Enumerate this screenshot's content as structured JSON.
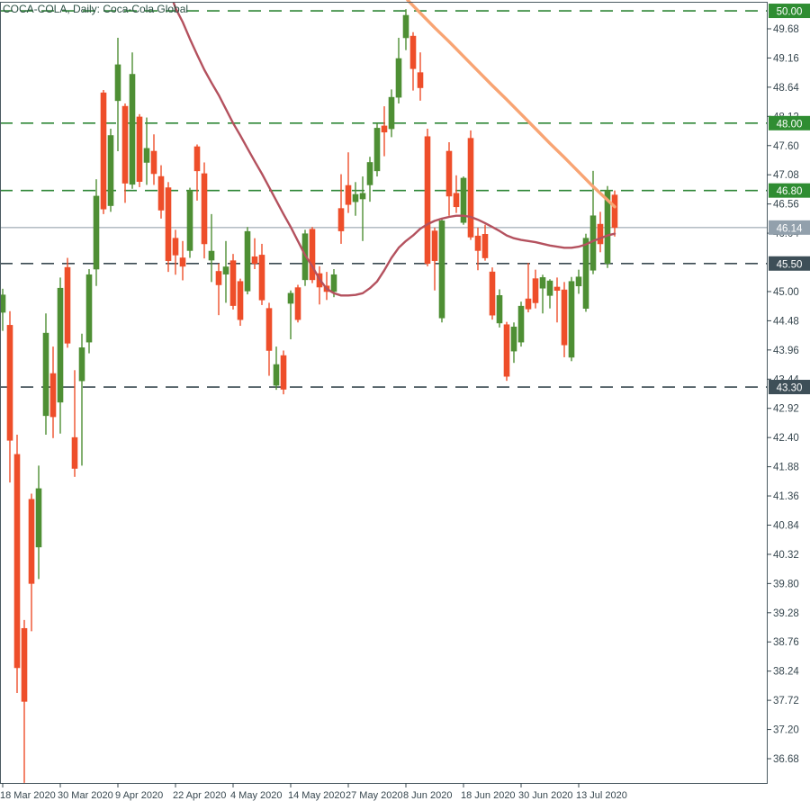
{
  "window": {
    "title": "COCA-COLA, Daily: Coca-Cola Global"
  },
  "chart_data": {
    "type": "candlestick",
    "title": "COCA-COLA, Daily: Coca-Cola Global",
    "symbol": "COCA-COLA",
    "period": "Daily",
    "description": "Coca-Cola Global",
    "price_axis": {
      "visible_tick_labels": [
        "49.68",
        "49.16",
        "48.64",
        "48.12",
        "47.60",
        "47.08",
        "46.56",
        "46.04",
        "45.00",
        "44.48",
        "43.96",
        "43.44",
        "42.92",
        "42.40",
        "41.88",
        "41.36",
        "40.84",
        "40.32",
        "39.80",
        "39.28",
        "38.76",
        "38.24",
        "37.72",
        "37.20",
        "36.68"
      ],
      "tick_step": 0.52,
      "current_price": "46.14"
    },
    "time_axis": {
      "labels": [
        "18 Mar 2020",
        "30 Mar 2020",
        "9 Apr 2020",
        "22 Apr 2020",
        "4 May 2020",
        "14 May 2020",
        "27 May 2020",
        "8 Jun 2020",
        "18 Jun 2020",
        "30 Jun 2020",
        "13 Jul 2020"
      ],
      "candle_indices": [
        0,
        8,
        16,
        24,
        32,
        40,
        48,
        56,
        64,
        72,
        80
      ]
    },
    "levels": [
      {
        "price": 50.0,
        "label": "50.00",
        "line_style": "dashed",
        "line_color": "#2e8636",
        "badge_color": "#2f8d32"
      },
      {
        "price": 48.0,
        "label": "48.00",
        "line_style": "dashed",
        "line_color": "#2e8636",
        "badge_color": "#2f8d32"
      },
      {
        "price": 46.8,
        "label": "46.80",
        "line_style": "dashed",
        "line_color": "#2e8636",
        "badge_color": "#2f8d32"
      },
      {
        "price": 46.14,
        "label": "46.14",
        "line_style": "solid",
        "line_color": "#8b99a5",
        "badge_color": "#92a0ac"
      },
      {
        "price": 45.5,
        "label": "45.50",
        "line_style": "dashed",
        "line_color": "#3a4a52",
        "badge_color": "#3e4f58"
      },
      {
        "price": 43.3,
        "label": "43.30",
        "line_style": "dashed",
        "line_color": "#3a4a52",
        "badge_color": "#3e4f58"
      }
    ],
    "moving_averages": [
      {
        "name": "ma-fast-red",
        "color": "#b4515e",
        "width": 2.4,
        "points": [
          [
            23.75,
            50.14
          ],
          [
            24,
            50.05
          ],
          [
            25,
            49.8
          ],
          [
            26,
            49.5
          ],
          [
            27,
            49.22
          ],
          [
            28,
            48.95
          ],
          [
            29,
            48.72
          ],
          [
            30,
            48.5
          ],
          [
            31,
            48.25
          ],
          [
            32,
            48.0
          ],
          [
            33,
            47.78
          ],
          [
            34,
            47.55
          ],
          [
            35,
            47.32
          ],
          [
            36,
            47.1
          ],
          [
            37,
            46.86
          ],
          [
            38,
            46.62
          ],
          [
            39,
            46.38
          ],
          [
            40,
            46.15
          ],
          [
            41,
            45.9
          ],
          [
            42,
            45.65
          ],
          [
            43,
            45.45
          ],
          [
            44,
            45.22
          ],
          [
            45,
            45.05
          ],
          [
            46,
            44.97
          ],
          [
            47,
            44.93
          ],
          [
            48,
            44.93
          ],
          [
            49,
            44.94
          ],
          [
            50,
            44.97
          ],
          [
            51,
            45.06
          ],
          [
            52,
            45.18
          ],
          [
            53,
            45.38
          ],
          [
            54,
            45.6
          ],
          [
            55,
            45.78
          ],
          [
            56,
            45.9
          ],
          [
            57,
            46.0
          ],
          [
            58,
            46.12
          ],
          [
            59,
            46.2
          ],
          [
            60,
            46.26
          ],
          [
            61,
            46.3
          ],
          [
            62,
            46.33
          ],
          [
            63,
            46.35
          ],
          [
            64,
            46.35
          ],
          [
            65,
            46.33
          ],
          [
            66,
            46.28
          ],
          [
            67,
            46.22
          ],
          [
            68,
            46.15
          ],
          [
            69,
            46.08
          ],
          [
            70,
            46.0
          ],
          [
            71,
            45.95
          ],
          [
            72,
            45.92
          ],
          [
            73,
            45.9
          ],
          [
            74,
            45.88
          ],
          [
            75,
            45.85
          ],
          [
            76,
            45.82
          ],
          [
            77,
            45.8
          ],
          [
            78,
            45.78
          ],
          [
            79,
            45.78
          ],
          [
            80,
            45.8
          ],
          [
            81,
            45.84
          ],
          [
            82,
            45.9
          ],
          [
            83,
            45.95
          ],
          [
            84,
            46.0
          ],
          [
            85,
            46.03
          ]
        ]
      },
      {
        "name": "ma-slow-orange",
        "color": "#f8a473",
        "width": 3.4,
        "points": [
          [
            56.25,
            50.19
          ],
          [
            58,
            49.96
          ],
          [
            60,
            49.7
          ],
          [
            62,
            49.45
          ],
          [
            64,
            49.19
          ],
          [
            66,
            48.93
          ],
          [
            68,
            48.67
          ],
          [
            70,
            48.42
          ],
          [
            72,
            48.16
          ],
          [
            74,
            47.9
          ],
          [
            76,
            47.64
          ],
          [
            78,
            47.39
          ],
          [
            80,
            47.13
          ],
          [
            82,
            46.87
          ],
          [
            84,
            46.63
          ],
          [
            85,
            46.51
          ]
        ]
      }
    ],
    "style": {
      "up_color": "#4e8f34",
      "down_color": "#ee4e2a",
      "axis_text_color": "#37474f",
      "border_color": "#4b5a61",
      "badge_text_color": "#ffffff",
      "background": "#ffffff"
    },
    "candles": [
      {
        "d": "18 Mar 2020",
        "o": 44.63,
        "h": 45.05,
        "l": 44.3,
        "c": 44.94
      },
      {
        "d": "19 Mar 2020",
        "o": 44.4,
        "h": 44.65,
        "l": 41.6,
        "c": 42.35
      },
      {
        "d": "20 Mar 2020",
        "o": 42.1,
        "h": 42.45,
        "l": 37.85,
        "c": 38.3
      },
      {
        "d": "23 Mar 2020",
        "o": 39.0,
        "h": 39.15,
        "l": 36.25,
        "c": 37.7
      },
      {
        "d": "24 Mar 2020",
        "o": 41.3,
        "h": 41.4,
        "l": 38.95,
        "c": 39.8
      },
      {
        "d": "25 Mar 2020",
        "o": 40.45,
        "h": 41.9,
        "l": 39.88,
        "c": 41.49
      },
      {
        "d": "26 Mar 2020",
        "o": 42.79,
        "h": 44.61,
        "l": 42.45,
        "c": 44.26
      },
      {
        "d": "27 Mar 2020",
        "o": 43.54,
        "h": 44.02,
        "l": 42.39,
        "c": 42.77
      },
      {
        "d": "30 Mar 2020",
        "o": 43.03,
        "h": 45.25,
        "l": 42.47,
        "c": 45.06
      },
      {
        "d": "31 Mar 2020",
        "o": 45.43,
        "h": 45.6,
        "l": 44.0,
        "c": 44.08
      },
      {
        "d": "1 Apr 2020",
        "o": 42.4,
        "h": 43.6,
        "l": 41.7,
        "c": 41.85
      },
      {
        "d": "2 Apr 2020",
        "o": 43.41,
        "h": 44.25,
        "l": 41.9,
        "c": 44.0
      },
      {
        "d": "3 Apr 2020",
        "o": 44.1,
        "h": 45.4,
        "l": 43.9,
        "c": 45.3
      },
      {
        "d": "6 Apr 2020",
        "o": 45.4,
        "h": 47.0,
        "l": 45.1,
        "c": 46.7
      },
      {
        "d": "7 Apr 2020",
        "o": 48.54,
        "h": 48.59,
        "l": 46.38,
        "c": 46.47
      },
      {
        "d": "8 Apr 2020",
        "o": 46.53,
        "h": 47.9,
        "l": 46.42,
        "c": 47.78
      },
      {
        "d": "9 Apr 2020",
        "o": 48.4,
        "h": 49.52,
        "l": 47.5,
        "c": 49.04
      },
      {
        "d": "13 Apr 2020",
        "o": 48.3,
        "h": 48.35,
        "l": 46.58,
        "c": 46.93
      },
      {
        "d": "14 Apr 2020",
        "o": 46.91,
        "h": 49.26,
        "l": 46.83,
        "c": 48.87
      },
      {
        "d": "15 Apr 2020",
        "o": 48.11,
        "h": 48.16,
        "l": 46.86,
        "c": 46.96
      },
      {
        "d": "16 Apr 2020",
        "o": 47.3,
        "h": 48.1,
        "l": 46.9,
        "c": 47.55
      },
      {
        "d": "17 Apr 2020",
        "o": 47.5,
        "h": 47.8,
        "l": 46.9,
        "c": 47.1
      },
      {
        "d": "20 Apr 2020",
        "o": 47.05,
        "h": 47.25,
        "l": 46.3,
        "c": 46.45
      },
      {
        "d": "21 Apr 2020",
        "o": 46.85,
        "h": 46.95,
        "l": 45.35,
        "c": 45.55
      },
      {
        "d": "22 Apr 2020",
        "o": 45.95,
        "h": 46.1,
        "l": 45.3,
        "c": 45.65
      },
      {
        "d": "23 Apr 2020",
        "o": 45.6,
        "h": 45.9,
        "l": 45.2,
        "c": 45.45
      },
      {
        "d": "24 Apr 2020",
        "o": 45.73,
        "h": 46.85,
        "l": 45.6,
        "c": 46.8
      },
      {
        "d": "27 Apr 2020",
        "o": 47.58,
        "h": 47.62,
        "l": 46.62,
        "c": 47.15
      },
      {
        "d": "28 Apr 2020",
        "o": 47.1,
        "h": 47.3,
        "l": 45.59,
        "c": 45.85
      },
      {
        "d": "29 Apr 2020",
        "o": 45.56,
        "h": 46.38,
        "l": 45.17,
        "c": 45.72
      },
      {
        "d": "30 Apr 2020",
        "o": 45.36,
        "h": 45.5,
        "l": 44.58,
        "c": 45.12
      },
      {
        "d": "1 May 2020",
        "o": 45.31,
        "h": 45.9,
        "l": 44.8,
        "c": 45.44
      },
      {
        "d": "4 May 2020",
        "o": 45.55,
        "h": 45.67,
        "l": 44.68,
        "c": 44.75
      },
      {
        "d": "5 May 2020",
        "o": 45.18,
        "h": 45.23,
        "l": 44.39,
        "c": 44.5
      },
      {
        "d": "6 May 2020",
        "o": 45.01,
        "h": 46.15,
        "l": 44.95,
        "c": 46.07
      },
      {
        "d": "7 May 2020",
        "o": 45.62,
        "h": 45.95,
        "l": 45.4,
        "c": 45.5
      },
      {
        "d": "8 May 2020",
        "o": 45.65,
        "h": 45.85,
        "l": 44.76,
        "c": 44.85
      },
      {
        "d": "11 May 2020",
        "o": 44.7,
        "h": 44.8,
        "l": 43.5,
        "c": 43.95
      },
      {
        "d": "12 May 2020",
        "o": 43.33,
        "h": 44.02,
        "l": 43.25,
        "c": 43.7
      },
      {
        "d": "13 May 2020",
        "o": 43.86,
        "h": 43.95,
        "l": 43.17,
        "c": 43.26
      },
      {
        "d": "14 May 2020",
        "o": 44.79,
        "h": 45.02,
        "l": 44.15,
        "c": 44.97
      },
      {
        "d": "15 May 2020",
        "o": 45.07,
        "h": 45.12,
        "l": 44.45,
        "c": 44.5
      },
      {
        "d": "18 May 2020",
        "o": 45.21,
        "h": 46.1,
        "l": 45.1,
        "c": 46.03
      },
      {
        "d": "19 May 2020",
        "o": 46.11,
        "h": 46.15,
        "l": 45.15,
        "c": 45.21
      },
      {
        "d": "20 May 2020",
        "o": 45.32,
        "h": 45.45,
        "l": 44.77,
        "c": 45.08
      },
      {
        "d": "21 May 2020",
        "o": 45.1,
        "h": 45.35,
        "l": 44.85,
        "c": 45.0
      },
      {
        "d": "22 May 2020",
        "o": 45.0,
        "h": 45.4,
        "l": 44.9,
        "c": 45.3
      },
      {
        "d": "26 May 2020",
        "o": 46.48,
        "h": 47.09,
        "l": 45.85,
        "c": 46.08
      },
      {
        "d": "27 May 2020",
        "o": 46.89,
        "h": 47.48,
        "l": 46.4,
        "c": 46.55
      },
      {
        "d": "28 May 2020",
        "o": 46.6,
        "h": 46.95,
        "l": 46.35,
        "c": 46.73
      },
      {
        "d": "29 May 2020",
        "o": 46.65,
        "h": 47.05,
        "l": 45.9,
        "c": 46.75
      },
      {
        "d": "1 Jun 2020",
        "o": 46.9,
        "h": 47.4,
        "l": 46.6,
        "c": 47.3
      },
      {
        "d": "2 Jun 2020",
        "o": 47.15,
        "h": 48.0,
        "l": 47.05,
        "c": 47.91
      },
      {
        "d": "3 Jun 2020",
        "o": 47.95,
        "h": 48.3,
        "l": 47.41,
        "c": 47.84
      },
      {
        "d": "4 Jun 2020",
        "o": 47.9,
        "h": 48.6,
        "l": 47.75,
        "c": 48.46
      },
      {
        "d": "5 Jun 2020",
        "o": 48.46,
        "h": 49.52,
        "l": 48.35,
        "c": 49.15
      },
      {
        "d": "8 Jun 2020",
        "o": 49.52,
        "h": 50.03,
        "l": 49.3,
        "c": 49.92
      },
      {
        "d": "9 Jun 2020",
        "o": 49.55,
        "h": 49.62,
        "l": 48.58,
        "c": 48.97
      },
      {
        "d": "10 Jun 2020",
        "o": 48.9,
        "h": 49.26,
        "l": 48.4,
        "c": 48.63
      },
      {
        "d": "11 Jun 2020",
        "o": 47.76,
        "h": 47.9,
        "l": 45.45,
        "c": 45.5
      },
      {
        "d": "12 Jun 2020",
        "o": 46.08,
        "h": 46.14,
        "l": 45.02,
        "c": 45.55
      },
      {
        "d": "15 Jun 2020",
        "o": 44.53,
        "h": 46.3,
        "l": 44.45,
        "c": 46.26
      },
      {
        "d": "16 Jun 2020",
        "o": 47.5,
        "h": 47.66,
        "l": 46.35,
        "c": 46.7
      },
      {
        "d": "17 Jun 2020",
        "o": 46.75,
        "h": 47.07,
        "l": 46.4,
        "c": 46.51
      },
      {
        "d": "18 Jun 2020",
        "o": 46.23,
        "h": 47.05,
        "l": 46.19,
        "c": 47.02
      },
      {
        "d": "19 Jun 2020",
        "o": 47.73,
        "h": 47.87,
        "l": 45.92,
        "c": 45.97
      },
      {
        "d": "22 Jun 2020",
        "o": 45.99,
        "h": 46.14,
        "l": 45.38,
        "c": 45.73
      },
      {
        "d": "23 Jun 2020",
        "o": 46.02,
        "h": 46.19,
        "l": 45.55,
        "c": 45.6
      },
      {
        "d": "24 Jun 2020",
        "o": 45.35,
        "h": 45.43,
        "l": 44.5,
        "c": 44.58
      },
      {
        "d": "25 Jun 2020",
        "o": 44.44,
        "h": 45.04,
        "l": 44.36,
        "c": 44.93
      },
      {
        "d": "26 Jun 2020",
        "o": 44.41,
        "h": 44.46,
        "l": 43.41,
        "c": 43.49
      },
      {
        "d": "29 Jun 2020",
        "o": 43.94,
        "h": 44.45,
        "l": 43.73,
        "c": 44.37
      },
      {
        "d": "30 Jun 2020",
        "o": 44.1,
        "h": 44.82,
        "l": 44.02,
        "c": 44.74
      },
      {
        "d": "1 Jul 2020",
        "o": 44.87,
        "h": 45.51,
        "l": 44.63,
        "c": 44.69
      },
      {
        "d": "2 Jul 2020",
        "o": 45.23,
        "h": 45.39,
        "l": 44.7,
        "c": 44.8
      },
      {
        "d": "6 Jul 2020",
        "o": 45.06,
        "h": 45.3,
        "l": 44.61,
        "c": 45.25
      },
      {
        "d": "7 Jul 2020",
        "o": 44.93,
        "h": 45.22,
        "l": 44.7,
        "c": 45.19
      },
      {
        "d": "8 Jul 2020",
        "o": 45.08,
        "h": 45.25,
        "l": 44.45,
        "c": 45.02
      },
      {
        "d": "9 Jul 2020",
        "o": 45.03,
        "h": 45.17,
        "l": 43.83,
        "c": 44.05
      },
      {
        "d": "10 Jul 2020",
        "o": 43.83,
        "h": 45.26,
        "l": 43.76,
        "c": 45.18
      },
      {
        "d": "13 Jul 2020",
        "o": 45.1,
        "h": 45.39,
        "l": 44.96,
        "c": 45.26
      },
      {
        "d": "14 Jul 2020",
        "o": 44.7,
        "h": 46.03,
        "l": 44.64,
        "c": 45.95
      },
      {
        "d": "15 Jul 2020",
        "o": 45.38,
        "h": 47.15,
        "l": 45.31,
        "c": 46.35
      },
      {
        "d": "16 Jul 2020",
        "o": 46.2,
        "h": 46.42,
        "l": 45.7,
        "c": 45.85
      },
      {
        "d": "17 Jul 2020",
        "o": 45.5,
        "h": 46.88,
        "l": 45.42,
        "c": 46.8
      },
      {
        "d": "20 Jul 2020",
        "o": 46.72,
        "h": 46.8,
        "l": 45.98,
        "c": 46.14
      }
    ]
  }
}
